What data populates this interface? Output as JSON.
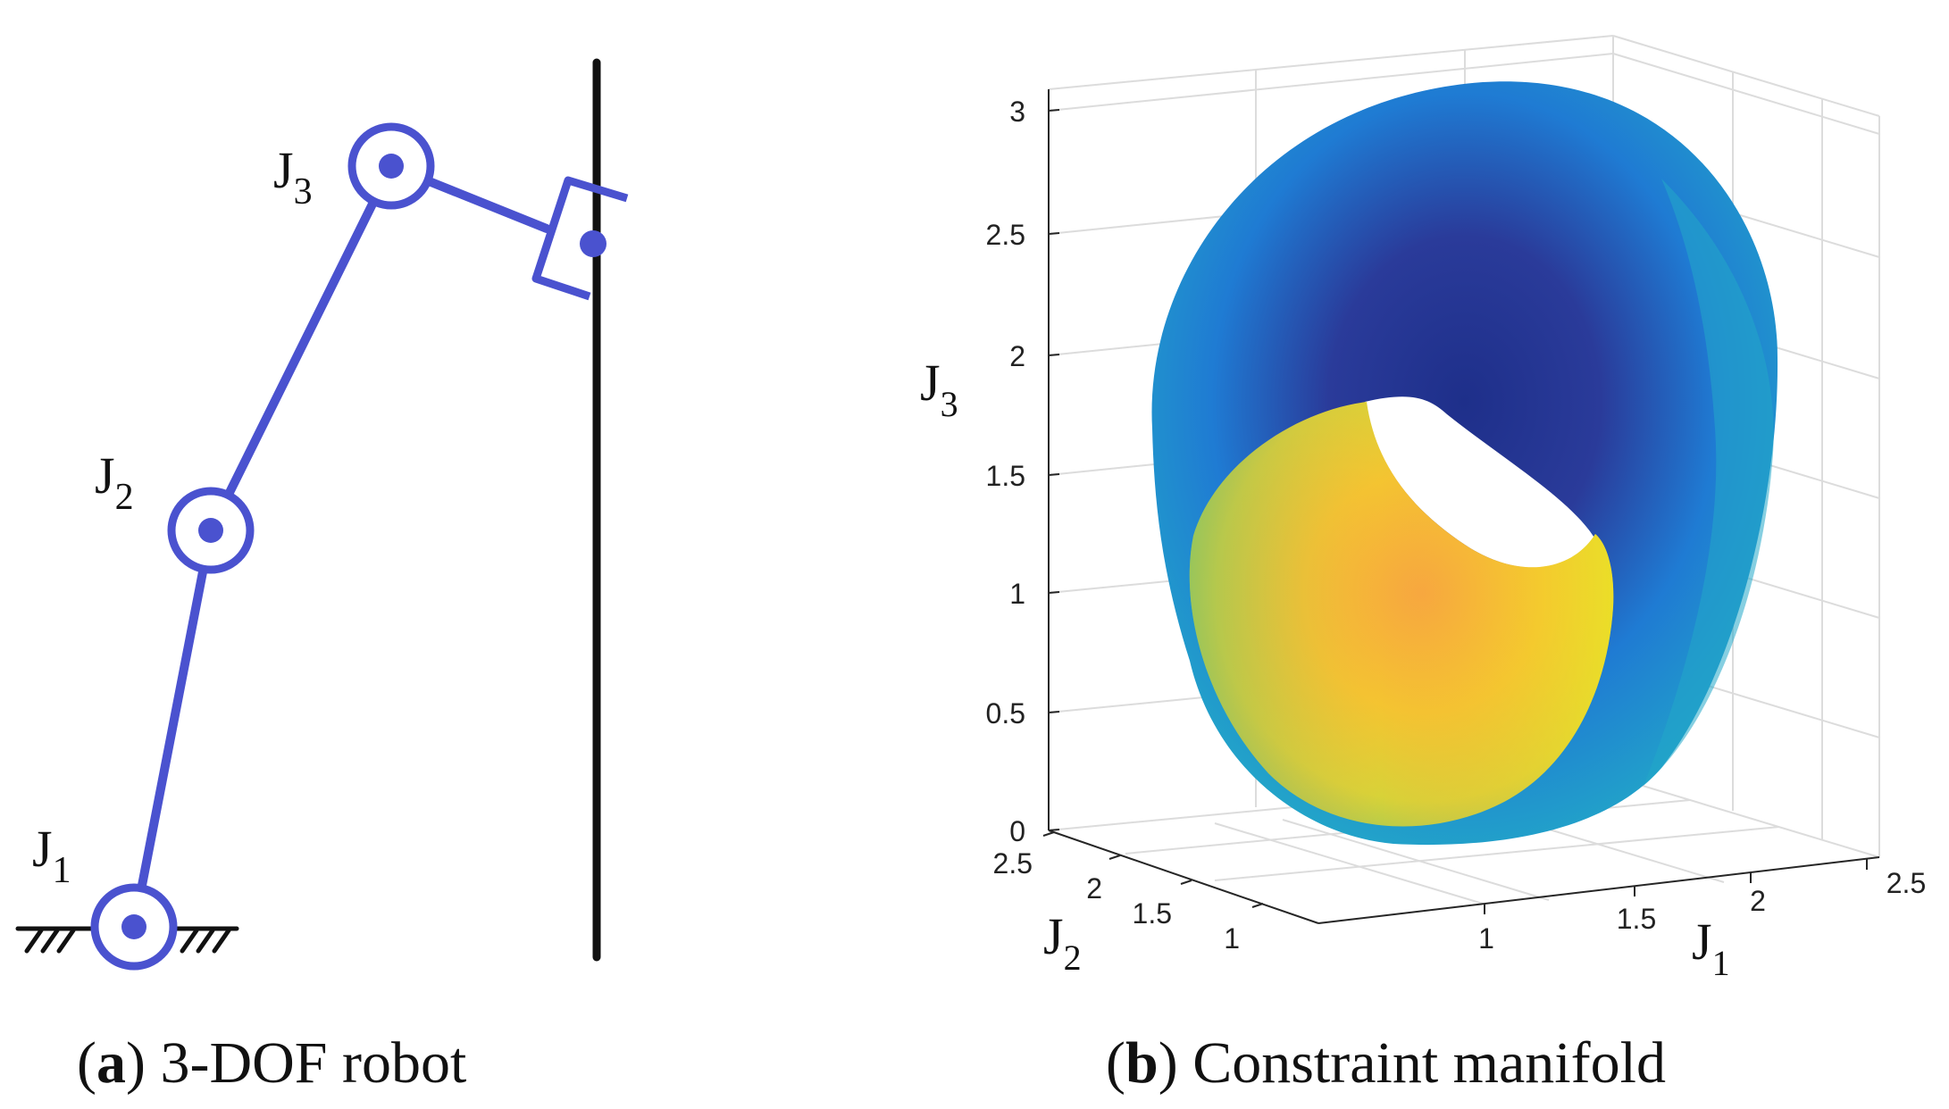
{
  "panel_a": {
    "tag": "a",
    "caption": "3-DOF robot",
    "joints": [
      {
        "name": "J",
        "sub": "1"
      },
      {
        "name": "J",
        "sub": "2"
      },
      {
        "name": "J",
        "sub": "3"
      }
    ]
  },
  "panel_b": {
    "tag": "b",
    "caption": "Constraint manifold",
    "axes": {
      "x": {
        "name": "J",
        "sub": "1",
        "ticks": [
          "1",
          "1.5",
          "2",
          "2.5"
        ]
      },
      "y": {
        "name": "J",
        "sub": "2",
        "ticks": [
          "1",
          "1.5",
          "2",
          "2.5"
        ]
      },
      "z": {
        "name": "J",
        "sub": "3",
        "ticks": [
          "0",
          "0.5",
          "1",
          "1.5",
          "2",
          "2.5",
          "3"
        ]
      }
    },
    "colors": {
      "outer_dark": "#2a3b9a",
      "outer_mid": "#1f7bd3",
      "outer_light": "#22a8c8",
      "inner_yellow": "#f4e81e",
      "inner_orange": "#f7a640",
      "inner_green": "#7cc06a"
    }
  }
}
